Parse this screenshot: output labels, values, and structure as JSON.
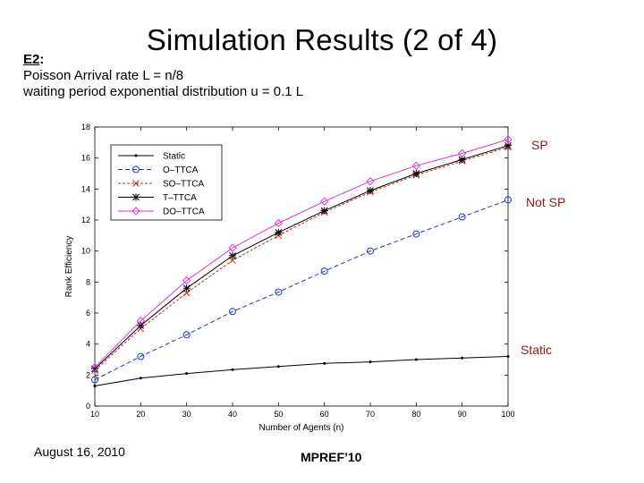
{
  "slide": {
    "title": "Simulation Results (2 of 4)",
    "experiment_label": "E2",
    "experiment_suffix": ":",
    "line1": "Poisson Arrival rate L = n/8",
    "line2": "waiting period exponential distribution u = 0.1 L",
    "footer_date": "August 16, 2010",
    "footer_conference": "MPREF’10"
  },
  "annotations": {
    "sp": "SP",
    "not_sp": "Not SP",
    "static": "Static"
  },
  "chart_data": {
    "type": "line",
    "xlabel": "Number of Agents (n)",
    "ylabel": "Rank Efficiency",
    "xlim": [
      10,
      100
    ],
    "ylim": [
      0,
      18
    ],
    "x_ticks": [
      "10",
      "20",
      "30",
      "40",
      "50",
      "60",
      "70",
      "80",
      "90",
      "100"
    ],
    "y_ticks": [
      "0",
      "2",
      "4",
      "6",
      "8",
      "10",
      "12",
      "14",
      "16",
      "18"
    ],
    "grid": false,
    "legend_position": "top-left",
    "x": [
      10,
      20,
      30,
      40,
      50,
      60,
      70,
      80,
      90,
      100
    ],
    "series": [
      {
        "name": "Static",
        "color": "#000000",
        "marker": "dot",
        "values": [
          1.3,
          1.8,
          2.1,
          2.35,
          2.55,
          2.75,
          2.85,
          3.0,
          3.1,
          3.2
        ]
      },
      {
        "name": "O–TTCA",
        "color": "#2233cc",
        "marker": "circle",
        "values": [
          1.7,
          3.2,
          4.6,
          6.1,
          7.35,
          8.7,
          10.0,
          11.1,
          12.2,
          13.3
        ]
      },
      {
        "name": "SO–TTCA",
        "color": "#cc2222",
        "marker": "x",
        "values": [
          2.3,
          5.0,
          7.3,
          9.4,
          11.0,
          12.5,
          13.8,
          14.9,
          15.8,
          16.7
        ]
      },
      {
        "name": "T–TTCA",
        "color": "#000000",
        "marker": "star",
        "values": [
          2.4,
          5.2,
          7.6,
          9.7,
          11.2,
          12.6,
          13.9,
          15.0,
          15.9,
          16.8
        ]
      },
      {
        "name": "DO–TTCA",
        "color": "#dd33dd",
        "marker": "diamond",
        "values": [
          2.5,
          5.5,
          8.1,
          10.2,
          11.8,
          13.2,
          14.5,
          15.5,
          16.3,
          17.2
        ]
      }
    ]
  }
}
